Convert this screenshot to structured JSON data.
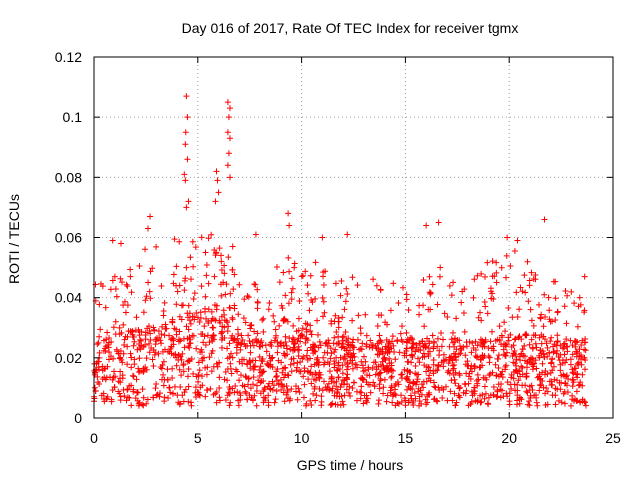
{
  "chart_data": {
    "type": "scatter",
    "title": "Day 016 of 2017, Rate Of TEC Index for receiver tgmx",
    "xlabel": "GPS time / hours",
    "ylabel": "ROTI / TECUs",
    "xlim": [
      0,
      25
    ],
    "ylim": [
      0,
      0.12
    ],
    "x_ticks": [
      "0",
      "5",
      "10",
      "15",
      "20",
      "25"
    ],
    "y_ticks": [
      "0",
      "0.02",
      "0.04",
      "0.06",
      "0.08",
      "0.1",
      "0.12"
    ],
    "grid": true,
    "marker": "+",
    "color": "#ff0000",
    "density_profile": {
      "hours": [
        0,
        1,
        2,
        3,
        4,
        5,
        6,
        7,
        8,
        9,
        10,
        11,
        12,
        13,
        14,
        15,
        16,
        17,
        18,
        19,
        20,
        21,
        22,
        23,
        23.7
      ],
      "typical_roti": [
        0.015,
        0.018,
        0.02,
        0.021,
        0.024,
        0.026,
        0.028,
        0.022,
        0.018,
        0.019,
        0.02,
        0.018,
        0.017,
        0.016,
        0.016,
        0.017,
        0.018,
        0.017,
        0.016,
        0.017,
        0.019,
        0.018,
        0.017,
        0.016,
        0.015
      ],
      "envelope_roti": [
        0.047,
        0.05,
        0.056,
        0.06,
        0.06,
        0.06,
        0.062,
        0.055,
        0.045,
        0.052,
        0.056,
        0.05,
        0.047,
        0.047,
        0.047,
        0.05,
        0.052,
        0.05,
        0.046,
        0.052,
        0.058,
        0.052,
        0.047,
        0.045,
        0.048
      ]
    },
    "outliers": [
      {
        "x": 4.45,
        "y": 0.107
      },
      {
        "x": 4.5,
        "y": 0.1
      },
      {
        "x": 4.42,
        "y": 0.095
      },
      {
        "x": 4.4,
        "y": 0.091
      },
      {
        "x": 4.5,
        "y": 0.086
      },
      {
        "x": 4.35,
        "y": 0.081
      },
      {
        "x": 4.4,
        "y": 0.079
      },
      {
        "x": 4.55,
        "y": 0.072
      },
      {
        "x": 4.45,
        "y": 0.07
      },
      {
        "x": 6.45,
        "y": 0.105
      },
      {
        "x": 6.55,
        "y": 0.103
      },
      {
        "x": 6.5,
        "y": 0.1
      },
      {
        "x": 6.45,
        "y": 0.095
      },
      {
        "x": 6.55,
        "y": 0.093
      },
      {
        "x": 6.5,
        "y": 0.088
      },
      {
        "x": 6.45,
        "y": 0.084
      },
      {
        "x": 6.55,
        "y": 0.08
      },
      {
        "x": 5.9,
        "y": 0.082
      },
      {
        "x": 5.95,
        "y": 0.079
      },
      {
        "x": 6.0,
        "y": 0.075
      },
      {
        "x": 5.85,
        "y": 0.072
      },
      {
        "x": 9.35,
        "y": 0.068
      },
      {
        "x": 9.4,
        "y": 0.064
      },
      {
        "x": 2.7,
        "y": 0.067
      },
      {
        "x": 2.6,
        "y": 0.063
      },
      {
        "x": 21.7,
        "y": 0.066
      },
      {
        "x": 16.6,
        "y": 0.065
      },
      {
        "x": 16.0,
        "y": 0.064
      },
      {
        "x": 19.9,
        "y": 0.06
      },
      {
        "x": 20.4,
        "y": 0.059
      },
      {
        "x": 12.2,
        "y": 0.061
      },
      {
        "x": 11.0,
        "y": 0.06
      },
      {
        "x": 0.9,
        "y": 0.059
      },
      {
        "x": 1.3,
        "y": 0.058
      },
      {
        "x": 7.8,
        "y": 0.061
      }
    ]
  }
}
